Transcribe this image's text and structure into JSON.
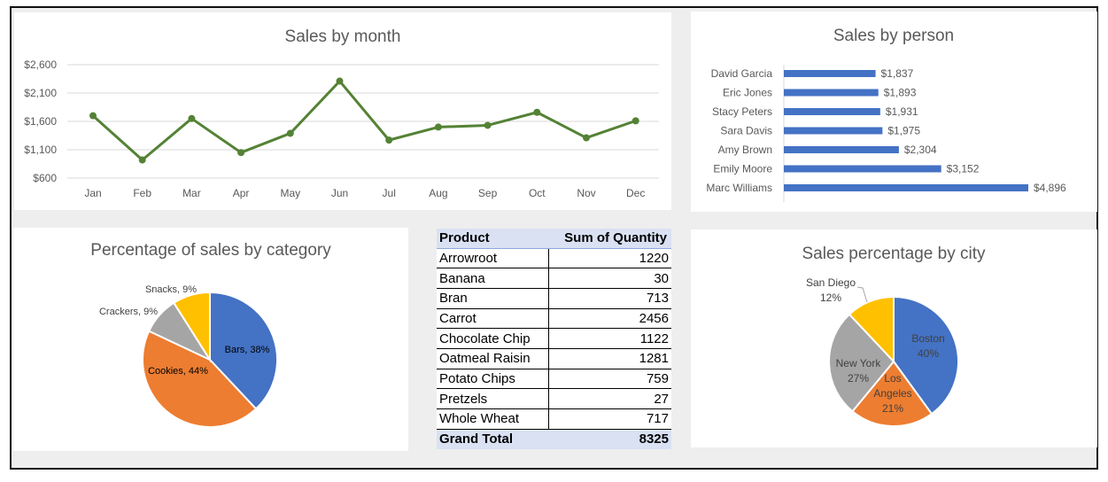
{
  "colors": {
    "line": "#548235",
    "bar": "#4472c4",
    "pie": [
      "#4472c4",
      "#ed7d31",
      "#a5a5a5",
      "#ffc000"
    ]
  },
  "chart_data": [
    {
      "id": "month",
      "type": "line",
      "title": "Sales by month",
      "categories": [
        "Jan",
        "Feb",
        "Mar",
        "Apr",
        "May",
        "Jun",
        "Jul",
        "Aug",
        "Sep",
        "Oct",
        "Nov",
        "Dec"
      ],
      "values": [
        1700,
        920,
        1650,
        1050,
        1390,
        2310,
        1270,
        1500,
        1530,
        1760,
        1310,
        1610
      ],
      "yticks": [
        "$600",
        "$1,100",
        "$1,600",
        "$2,100",
        "$2,600"
      ],
      "ylim": [
        600,
        2600
      ],
      "grid": true
    },
    {
      "id": "person",
      "type": "bar",
      "orientation": "horizontal",
      "title": "Sales by person",
      "categories": [
        "David Garcia",
        "Eric Jones",
        "Stacy Peters",
        "Sara Davis",
        "Amy Brown",
        "Emily Moore",
        "Marc Williams"
      ],
      "values": [
        1837,
        1893,
        1931,
        1975,
        2304,
        3152,
        4896
      ],
      "labels": [
        "$1,837",
        "$1,893",
        "$1,931",
        "$1,975",
        "$2,304",
        "$3,152",
        "$4,896"
      ],
      "xlim": [
        0,
        4896
      ]
    },
    {
      "id": "category",
      "type": "pie",
      "title": "Percentage of sales by category",
      "slices": [
        {
          "name": "Bars",
          "value": 38,
          "label": "Bars, 38%"
        },
        {
          "name": "Cookies",
          "value": 44,
          "label": "Cookies, 44%"
        },
        {
          "name": "Crackers",
          "value": 9,
          "label": "Crackers, 9%"
        },
        {
          "name": "Snacks",
          "value": 9,
          "label": "Snacks, 9%"
        }
      ]
    },
    {
      "id": "city",
      "type": "pie",
      "title": "Sales percentage by city",
      "slices": [
        {
          "name": "Boston",
          "value": 40,
          "label": [
            "Boston",
            "40%"
          ]
        },
        {
          "name": "Los Angeles",
          "value": 21,
          "label": [
            "Los",
            "Angeles",
            "21%"
          ]
        },
        {
          "name": "New York",
          "value": 27,
          "label": [
            "New York",
            "27%"
          ]
        },
        {
          "name": "San Diego",
          "value": 12,
          "label": [
            "San Diego",
            "12%"
          ]
        }
      ]
    }
  ],
  "table": {
    "headers": [
      "Product",
      "Sum of Quantity"
    ],
    "rows": [
      [
        "Arrowroot",
        "1220"
      ],
      [
        "Banana",
        "30"
      ],
      [
        "Bran",
        "713"
      ],
      [
        "Carrot",
        "2456"
      ],
      [
        "Chocolate Chip",
        "1122"
      ],
      [
        "Oatmeal Raisin",
        "1281"
      ],
      [
        "Potato Chips",
        "759"
      ],
      [
        "Pretzels",
        "27"
      ],
      [
        "Whole Wheat",
        "717"
      ]
    ],
    "total": [
      "Grand Total",
      "8325"
    ]
  }
}
